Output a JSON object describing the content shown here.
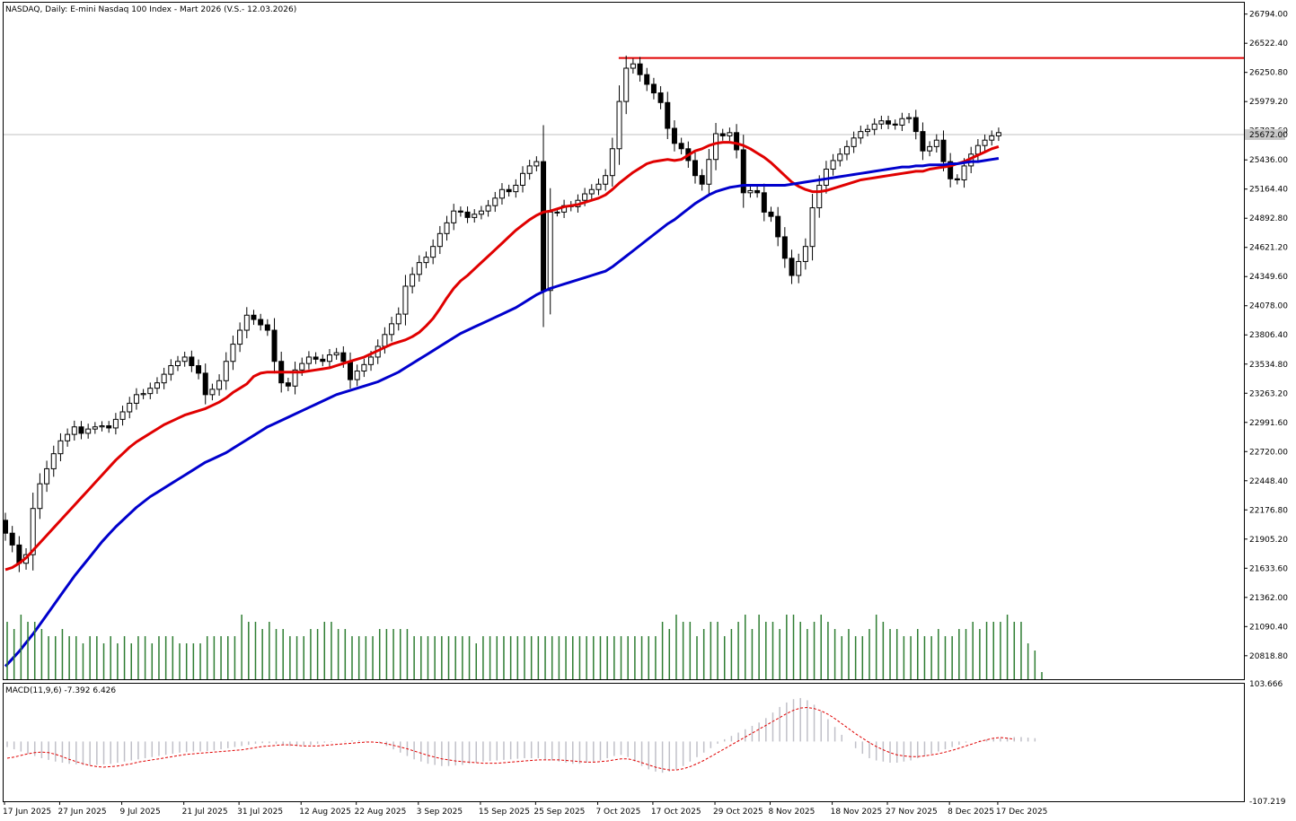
{
  "header": {
    "title": "NASDAQ, Daily:  E-mini Nasdaq 100 Index - Mart 2026 (V.S.- 12.03.2026)",
    "macd_label": "MACD(11,9,6) -7.392 6.426"
  },
  "colors": {
    "bull_body": "#ffffff",
    "bear_body": "#000000",
    "ema_fast": "#e00000",
    "ema_slow": "#0000cc",
    "resistance": "#e00000",
    "volume": "#2e7d32",
    "macd_hist": "#c0c0c8",
    "macd_signal": "#e00000",
    "current_price_line": "#c0c0c0"
  },
  "chart_data": [
    {
      "type": "candlestick",
      "panel": "price",
      "symbol": "NASDAQ",
      "timeframe": "Daily",
      "ylim": [
        20600,
        26900
      ],
      "y_ticks": [
        "26794.00",
        "26522.40",
        "26250.80",
        "25979.20",
        "25707.60",
        "25436.00",
        "25164.40",
        "24892.80",
        "24621.20",
        "24349.60",
        "24078.00",
        "23806.40",
        "23534.80",
        "23263.20",
        "22991.60",
        "22720.00",
        "22448.40",
        "22176.80",
        "21905.20",
        "21633.60",
        "21362.00",
        "21090.40",
        "20818.80"
      ],
      "current_price": 25672,
      "current_price_label": "25672.00",
      "resistance_level": 26385,
      "x_labels": [
        "17 Jun 2025",
        "27 Jun 2025",
        "9 Jul 2025",
        "21 Jul 2025",
        "31 Jul 2025",
        "12 Aug 2025",
        "22 Aug 2025",
        "3 Sep 2025",
        "15 Sep 2025",
        "25 Sep 2025",
        "7 Oct 2025",
        "17 Oct 2025",
        "29 Oct 2025",
        "8 Nov 2025",
        "18 Nov 2025",
        "27 Nov 2025",
        "8 Dec 2025",
        "17 Dec 2025"
      ],
      "close": [
        21960,
        21850,
        21680,
        21760,
        22190,
        22420,
        22560,
        22700,
        22820,
        22880,
        22950,
        22890,
        22930,
        22950,
        22960,
        22940,
        23020,
        23090,
        23170,
        23250,
        23260,
        23310,
        23360,
        23440,
        23520,
        23560,
        23600,
        23520,
        23450,
        23250,
        23300,
        23380,
        23560,
        23720,
        23850,
        23990,
        23950,
        23900,
        23850,
        23560,
        23360,
        23330,
        23480,
        23540,
        23600,
        23580,
        23560,
        23620,
        23640,
        23560,
        23390,
        23470,
        23530,
        23600,
        23700,
        23810,
        23910,
        24000,
        24260,
        24370,
        24480,
        24530,
        24630,
        24750,
        24850,
        24960,
        24950,
        24900,
        24930,
        24960,
        25010,
        25080,
        25160,
        25140,
        25200,
        25310,
        25380,
        25420,
        24220,
        24950,
        24950,
        25010,
        25000,
        25060,
        25120,
        25160,
        25210,
        25290,
        25540,
        25980,
        26290,
        26330,
        26230,
        26140,
        26060,
        25970,
        25730,
        25590,
        25540,
        25430,
        25290,
        25210,
        25440,
        25680,
        25660,
        25690,
        25530,
        25130,
        25150,
        25130,
        24950,
        24910,
        24720,
        24520,
        24360,
        24490,
        24630,
        24990,
        25200,
        25350,
        25430,
        25490,
        25560,
        25640,
        25700,
        25720,
        25770,
        25800,
        25770,
        25760,
        25820,
        25830,
        25700,
        25520,
        25560,
        25620,
        25420,
        25260,
        25250,
        25380,
        25490,
        25570,
        25620,
        25660,
        25690
      ]
    },
    {
      "type": "line",
      "panel": "price",
      "series": [
        {
          "name": "ema_fast",
          "values": [
            21620,
            21640,
            21680,
            21730,
            21800,
            21870,
            21940,
            22010,
            22080,
            22150,
            22220,
            22290,
            22360,
            22430,
            22500,
            22570,
            22640,
            22700,
            22760,
            22810,
            22850,
            22890,
            22930,
            22970,
            23000,
            23030,
            23060,
            23080,
            23100,
            23120,
            23150,
            23180,
            23220,
            23270,
            23310,
            23350,
            23420,
            23450,
            23460,
            23460,
            23460,
            23460,
            23460,
            23460,
            23470,
            23480,
            23490,
            23500,
            23520,
            23540,
            23560,
            23580,
            23600,
            23630,
            23660,
            23690,
            23720,
            23740,
            23760,
            23790,
            23830,
            23890,
            23960,
            24050,
            24150,
            24240,
            24310,
            24360,
            24420,
            24480,
            24540,
            24600,
            24660,
            24720,
            24780,
            24830,
            24880,
            24920,
            24950,
            24960,
            24980,
            25000,
            25010,
            25020,
            25040,
            25060,
            25080,
            25110,
            25160,
            25220,
            25270,
            25320,
            25360,
            25400,
            25420,
            25430,
            25440,
            25430,
            25440,
            25480,
            25520,
            25540,
            25570,
            25590,
            25600,
            25600,
            25590,
            25570,
            25540,
            25500,
            25460,
            25410,
            25350,
            25290,
            25230,
            25190,
            25160,
            25140,
            25140,
            25150,
            25170,
            25190,
            25210,
            25230,
            25250,
            25260,
            25270,
            25280,
            25290,
            25300,
            25310,
            25320,
            25330,
            25330,
            25350,
            25360,
            25370,
            25380,
            25400,
            25420,
            25450,
            25480,
            25510,
            25540,
            25560
          ]
        },
        {
          "name": "ema_slow",
          "values": [
            20720,
            20790,
            20860,
            20940,
            21020,
            21110,
            21200,
            21290,
            21380,
            21470,
            21560,
            21640,
            21720,
            21800,
            21880,
            21950,
            22020,
            22080,
            22140,
            22200,
            22250,
            22300,
            22340,
            22380,
            22420,
            22460,
            22500,
            22540,
            22580,
            22620,
            22650,
            22680,
            22710,
            22750,
            22790,
            22830,
            22870,
            22910,
            22950,
            22980,
            23010,
            23040,
            23070,
            23100,
            23130,
            23160,
            23190,
            23220,
            23250,
            23270,
            23290,
            23310,
            23330,
            23350,
            23370,
            23400,
            23430,
            23460,
            23500,
            23540,
            23580,
            23620,
            23660,
            23700,
            23740,
            23780,
            23820,
            23850,
            23880,
            23910,
            23940,
            23970,
            24000,
            24030,
            24060,
            24100,
            24140,
            24180,
            24210,
            24240,
            24260,
            24280,
            24300,
            24320,
            24340,
            24360,
            24380,
            24400,
            24440,
            24490,
            24540,
            24590,
            24640,
            24690,
            24740,
            24790,
            24840,
            24880,
            24930,
            24980,
            25030,
            25070,
            25110,
            25140,
            25160,
            25180,
            25190,
            25200,
            25200,
            25200,
            25200,
            25200,
            25200,
            25200,
            25210,
            25220,
            25230,
            25240,
            25250,
            25260,
            25270,
            25280,
            25290,
            25300,
            25310,
            25320,
            25330,
            25340,
            25350,
            25360,
            25370,
            25370,
            25380,
            25380,
            25390,
            25390,
            25390,
            25400,
            25400,
            25410,
            25420,
            25420,
            25430,
            25440,
            25450
          ]
        }
      ]
    },
    {
      "type": "bar",
      "panel": "volume",
      "values": [
        0.8,
        0.7,
        0.9,
        0.8,
        0.8,
        0.7,
        0.6,
        0.6,
        0.7,
        0.6,
        0.6,
        0.5,
        0.6,
        0.6,
        0.5,
        0.6,
        0.5,
        0.6,
        0.5,
        0.6,
        0.6,
        0.5,
        0.6,
        0.6,
        0.6,
        0.5,
        0.5,
        0.5,
        0.5,
        0.6,
        0.6,
        0.6,
        0.6,
        0.6,
        0.9,
        0.8,
        0.8,
        0.7,
        0.8,
        0.7,
        0.7,
        0.6,
        0.6,
        0.6,
        0.7,
        0.7,
        0.8,
        0.8,
        0.7,
        0.7,
        0.6,
        0.6,
        0.6,
        0.6,
        0.7,
        0.7,
        0.7,
        0.7,
        0.7,
        0.6,
        0.6,
        0.6,
        0.6,
        0.6,
        0.6,
        0.6,
        0.6,
        0.6,
        0.5,
        0.6,
        0.6,
        0.6,
        0.6,
        0.6,
        0.6,
        0.6,
        0.6,
        0.6,
        0.6,
        0.6,
        0.6,
        0.6,
        0.6,
        0.6,
        0.6,
        0.6,
        0.6,
        0.6,
        0.6,
        0.6,
        0.6,
        0.6,
        0.6,
        0.6,
        0.6,
        0.8,
        0.7,
        0.9,
        0.8,
        0.8,
        0.6,
        0.7,
        0.8,
        0.8,
        0.6,
        0.7,
        0.8,
        0.9,
        0.7,
        0.9,
        0.8,
        0.8,
        0.7,
        0.9,
        0.9,
        0.8,
        0.7,
        0.8,
        0.9,
        0.8,
        0.7,
        0.6,
        0.7,
        0.6,
        0.6,
        0.7,
        0.9,
        0.8,
        0.7,
        0.7,
        0.6,
        0.6,
        0.7,
        0.6,
        0.6,
        0.7,
        0.6,
        0.6,
        0.7,
        0.7,
        0.8,
        0.7,
        0.8,
        0.8,
        0.8,
        0.9,
        0.8,
        0.8,
        0.5,
        0.4,
        0.1
      ]
    },
    {
      "type": "line",
      "panel": "macd",
      "ylim": [
        -107.219,
        103.666
      ],
      "y_ticks": [
        "103.666",
        "-107.219"
      ],
      "series": [
        {
          "name": "histogram",
          "values": [
            -10,
            -14,
            -18,
            -22,
            -26,
            -30,
            -33,
            -36,
            -38,
            -40,
            -41,
            -42,
            -42,
            -42,
            -41,
            -40,
            -38,
            -36,
            -34,
            -32,
            -30,
            -28,
            -26,
            -24,
            -22,
            -20,
            -19,
            -18,
            -18,
            -17,
            -16,
            -14,
            -12,
            -10,
            -8,
            -6,
            -4,
            -3,
            -3,
            -4,
            -6,
            -8,
            -8,
            -7,
            -6,
            -4,
            -2,
            -1,
            0,
            1,
            2,
            2,
            1,
            0,
            -3,
            -8,
            -14,
            -20,
            -26,
            -32,
            -36,
            -40,
            -42,
            -44,
            -44,
            -43,
            -42,
            -40,
            -38,
            -36,
            -35,
            -34,
            -33,
            -32,
            -31,
            -30,
            -30,
            -30,
            -32,
            -34,
            -36,
            -38,
            -40,
            -40,
            -38,
            -36,
            -34,
            -30,
            -26,
            -24,
            -28,
            -36,
            -44,
            -50,
            -54,
            -56,
            -54,
            -50,
            -44,
            -36,
            -28,
            -20,
            -12,
            -4,
            4,
            10,
            16,
            22,
            28,
            34,
            42,
            52,
            62,
            70,
            76,
            78,
            74,
            66,
            54,
            40,
            26,
            12,
            0,
            -12,
            -22,
            -30,
            -34,
            -36,
            -38,
            -38,
            -36,
            -34,
            -30,
            -26,
            -22,
            -18,
            -14,
            -10,
            -6,
            -2,
            0,
            2,
            4,
            5,
            6,
            7,
            8,
            8,
            7,
            6
          ]
        },
        {
          "name": "signal",
          "values": [
            -30,
            -28,
            -25,
            -22,
            -20,
            -19,
            -20,
            -23,
            -27,
            -32,
            -36,
            -40,
            -43,
            -45,
            -46,
            -45,
            -44,
            -42,
            -40,
            -37,
            -35,
            -33,
            -31,
            -29,
            -27,
            -25,
            -23,
            -22,
            -21,
            -20,
            -19,
            -18,
            -17,
            -16,
            -15,
            -13,
            -11,
            -9,
            -8,
            -7,
            -6,
            -6,
            -7,
            -8,
            -8,
            -8,
            -7,
            -6,
            -5,
            -4,
            -3,
            -2,
            -1,
            -1,
            -2,
            -4,
            -7,
            -10,
            -13,
            -17,
            -21,
            -25,
            -28,
            -31,
            -33,
            -35,
            -36,
            -37,
            -38,
            -39,
            -39,
            -39,
            -38,
            -37,
            -36,
            -35,
            -34,
            -33,
            -33,
            -33,
            -33,
            -34,
            -35,
            -36,
            -37,
            -37,
            -36,
            -35,
            -33,
            -31,
            -31,
            -34,
            -38,
            -42,
            -46,
            -49,
            -51,
            -51,
            -49,
            -45,
            -40,
            -34,
            -27,
            -20,
            -13,
            -6,
            1,
            8,
            15,
            22,
            29,
            36,
            43,
            50,
            56,
            60,
            61,
            59,
            55,
            49,
            41,
            32,
            23,
            14,
            6,
            -2,
            -9,
            -15,
            -20,
            -24,
            -26,
            -27,
            -27,
            -26,
            -24,
            -22,
            -19,
            -16,
            -12,
            -8,
            -4,
            0,
            3,
            6,
            7,
            6,
            4
          ]
        }
      ]
    }
  ]
}
